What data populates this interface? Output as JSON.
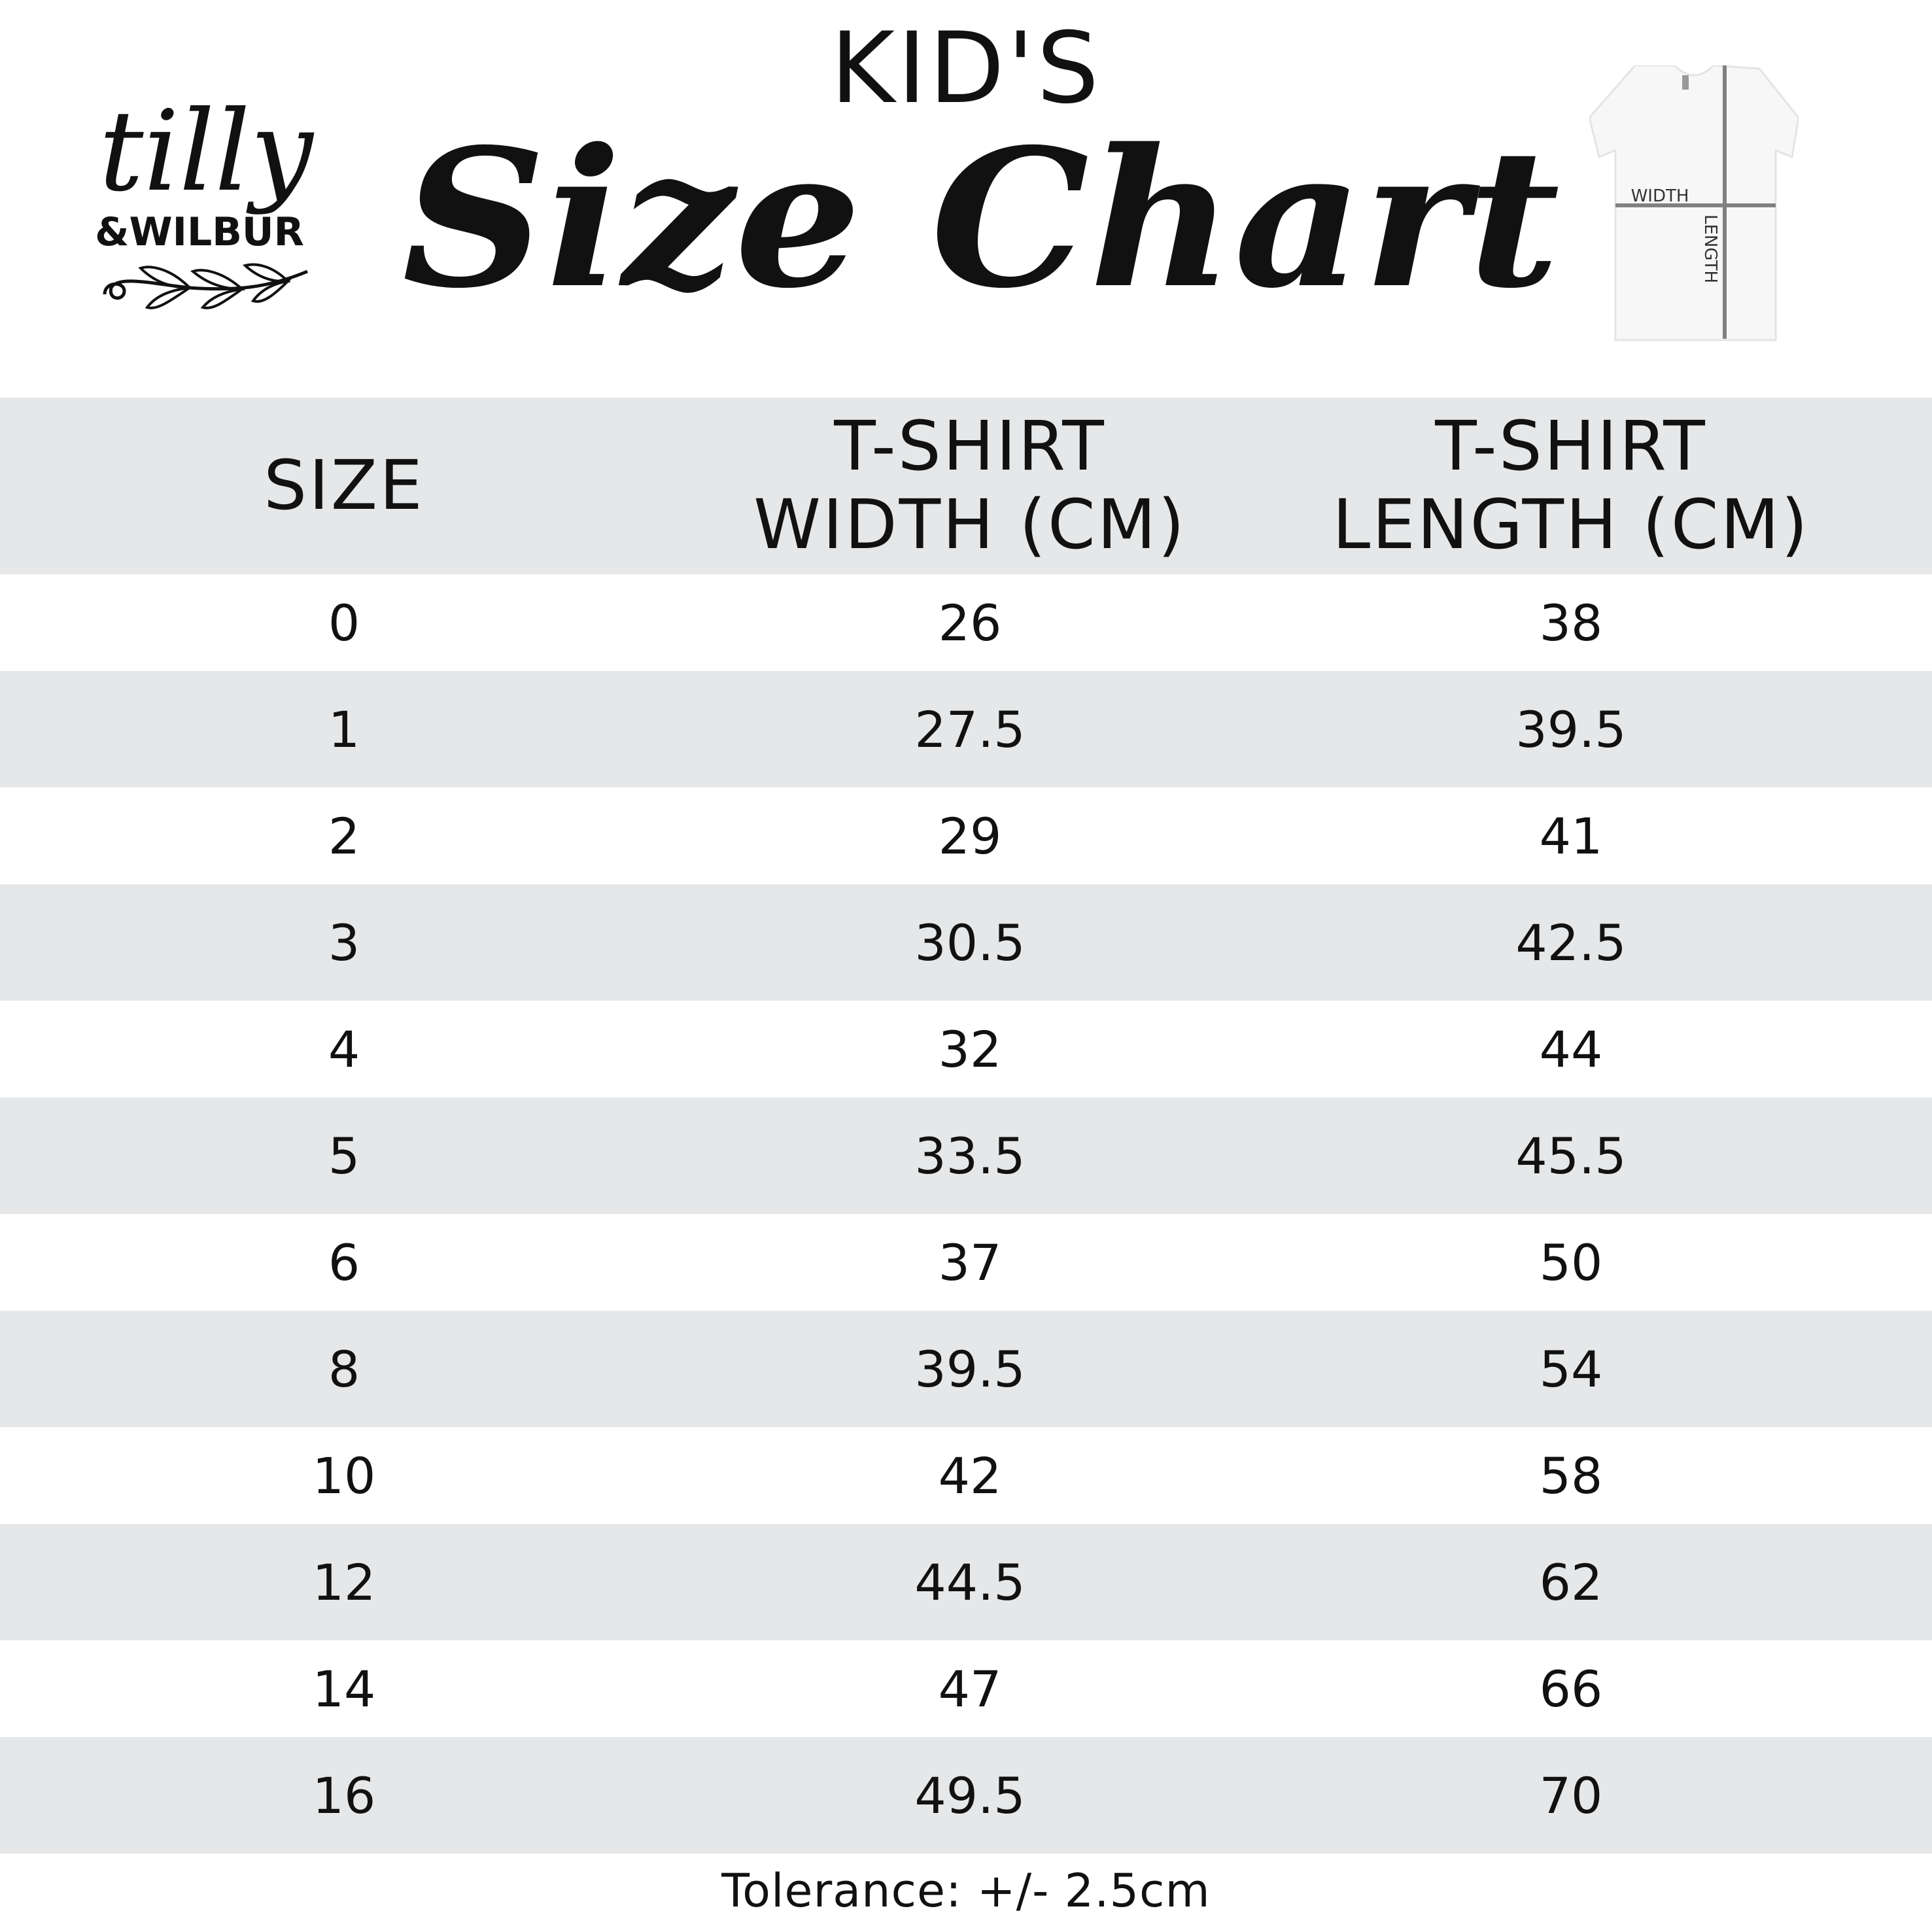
{
  "header": {
    "kicker": "KID'S",
    "title": "Size Chart",
    "logo_text": "tilly & WILBUR",
    "diagram": {
      "width_label": "WIDTH",
      "length_label": "LENGTH"
    }
  },
  "table": {
    "columns": [
      "SIZE",
      "T-SHIRT\nWIDTH (CM)",
      "T-SHIRT\nLENGTH (CM)"
    ],
    "rows": [
      [
        "0",
        "26",
        "38"
      ],
      [
        "1",
        "27.5",
        "39.5"
      ],
      [
        "2",
        "29",
        "41"
      ],
      [
        "3",
        "30.5",
        "42.5"
      ],
      [
        "4",
        "32",
        "44"
      ],
      [
        "5",
        "33.5",
        "45.5"
      ],
      [
        "6",
        "37",
        "50"
      ],
      [
        "8",
        "39.5",
        "54"
      ],
      [
        "10",
        "42",
        "58"
      ],
      [
        "12",
        "44.5",
        "62"
      ],
      [
        "14",
        "47",
        "66"
      ],
      [
        "16",
        "49.5",
        "70"
      ]
    ],
    "stripe_color": "#e6e7e8"
  },
  "footer": {
    "tolerance": "Tolerance: +/- 2.5cm"
  }
}
